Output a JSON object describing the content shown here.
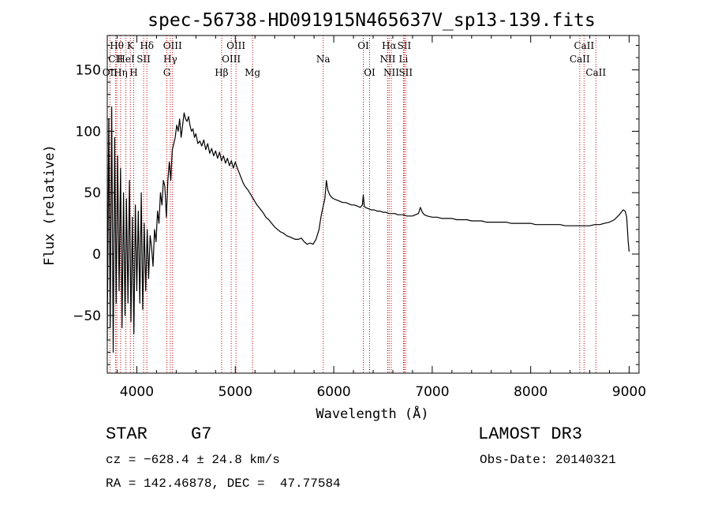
{
  "chart_data": {
    "type": "line",
    "title": "spec-56738-HD091915N465637V_sp13-139.fits",
    "xlabel": "Wavelength (Å)",
    "ylabel": "Flux (relative)",
    "xlim": [
      3700,
      9100
    ],
    "ylim": [
      -97,
      178
    ],
    "xticks": [
      4000,
      5000,
      6000,
      7000,
      8000,
      9000
    ],
    "yticks": [
      -50,
      0,
      50,
      100,
      150
    ],
    "series": [
      {
        "name": "flux",
        "x": [
          3700,
          3715,
          3730,
          3745,
          3760,
          3775,
          3790,
          3805,
          3820,
          3835,
          3850,
          3865,
          3880,
          3895,
          3910,
          3925,
          3940,
          3955,
          3970,
          3985,
          4000,
          4015,
          4030,
          4045,
          4060,
          4075,
          4090,
          4105,
          4120,
          4135,
          4150,
          4165,
          4180,
          4195,
          4210,
          4225,
          4240,
          4255,
          4270,
          4285,
          4300,
          4315,
          4330,
          4345,
          4360,
          4375,
          4390,
          4405,
          4420,
          4435,
          4450,
          4465,
          4480,
          4495,
          4510,
          4525,
          4540,
          4555,
          4570,
          4585,
          4600,
          4620,
          4640,
          4660,
          4680,
          4700,
          4720,
          4740,
          4760,
          4780,
          4800,
          4820,
          4840,
          4860,
          4880,
          4900,
          4920,
          4940,
          4960,
          4980,
          5000,
          5020,
          5040,
          5060,
          5080,
          5100,
          5130,
          5160,
          5190,
          5220,
          5250,
          5280,
          5310,
          5340,
          5370,
          5400,
          5430,
          5460,
          5490,
          5520,
          5550,
          5580,
          5610,
          5640,
          5670,
          5700,
          5730,
          5760,
          5790,
          5820,
          5850,
          5870,
          5890,
          5910,
          5925,
          5940,
          5960,
          5980,
          6000,
          6030,
          6060,
          6090,
          6120,
          6150,
          6180,
          6210,
          6240,
          6270,
          6290,
          6300,
          6310,
          6320,
          6350,
          6380,
          6410,
          6440,
          6470,
          6500,
          6530,
          6560,
          6590,
          6620,
          6650,
          6680,
          6710,
          6740,
          6770,
          6800,
          6830,
          6860,
          6880,
          6900,
          6920,
          6950,
          7000,
          7050,
          7100,
          7150,
          7200,
          7250,
          7300,
          7350,
          7400,
          7450,
          7500,
          7550,
          7600,
          7650,
          7700,
          7750,
          7800,
          7850,
          7900,
          7950,
          8000,
          8050,
          8100,
          8150,
          8200,
          8250,
          8300,
          8350,
          8400,
          8450,
          8500,
          8550,
          8600,
          8650,
          8700,
          8750,
          8800,
          8850,
          8900,
          8940,
          8960,
          8975,
          8990,
          9000
        ],
        "values": [
          -70,
          110,
          -60,
          120,
          -80,
          95,
          -40,
          80,
          -30,
          70,
          -60,
          50,
          -50,
          45,
          -40,
          60,
          -55,
          30,
          -65,
          40,
          -30,
          35,
          -40,
          50,
          -45,
          25,
          -30,
          20,
          -20,
          15,
          5,
          -10,
          20,
          10,
          35,
          25,
          50,
          40,
          60,
          55,
          30,
          60,
          75,
          60,
          85,
          90,
          95,
          105,
          100,
          110,
          95,
          105,
          115,
          110,
          108,
          112,
          105,
          100,
          102,
          95,
          98,
          90,
          92,
          88,
          93,
          85,
          90,
          82,
          86,
          80,
          84,
          78,
          83,
          76,
          80,
          74,
          78,
          72,
          76,
          70,
          75,
          70,
          66,
          62,
          58,
          55,
          52,
          48,
          44,
          40,
          37,
          34,
          30,
          28,
          25,
          22,
          20,
          18,
          17,
          15,
          14,
          13,
          12,
          12,
          13,
          10,
          8,
          9,
          8,
          12,
          20,
          30,
          38,
          45,
          60,
          52,
          48,
          46,
          45,
          44,
          43,
          42,
          42,
          41,
          40,
          40,
          39,
          38,
          40,
          48,
          39,
          38,
          37,
          36,
          36,
          35,
          35,
          34,
          34,
          33,
          33,
          33,
          32,
          32,
          32,
          31,
          31,
          31,
          32,
          33,
          38,
          34,
          32,
          31,
          30,
          30,
          29,
          29,
          29,
          28,
          28,
          28,
          27,
          27,
          27,
          26,
          26,
          26,
          26,
          26,
          25,
          25,
          25,
          25,
          25,
          24,
          24,
          24,
          24,
          24,
          24,
          23,
          23,
          23,
          23,
          23,
          23,
          24,
          24,
          25,
          26,
          28,
          32,
          36,
          35,
          30,
          10,
          2
        ]
      }
    ],
    "spectral_lines": [
      {
        "label": "Hθ",
        "x": 3797,
        "row": 0
      },
      {
        "label": "CII",
        "x": 3785,
        "row": 1
      },
      {
        "label": "OII",
        "x": 3727,
        "row": 2
      },
      {
        "label": "Hη",
        "x": 3835,
        "row": 2
      },
      {
        "label": "K",
        "x": 3934,
        "row": 0
      },
      {
        "label": "HeI",
        "x": 3889,
        "row": 1
      },
      {
        "label": "SII",
        "x": 4069,
        "row": 1
      },
      {
        "label": "Hδ",
        "x": 4102,
        "row": 0
      },
      {
        "label": "H",
        "x": 3968,
        "row": 2
      },
      {
        "label": "OIII",
        "x": 4363,
        "row": 0
      },
      {
        "label": "Hγ",
        "x": 4340,
        "row": 1
      },
      {
        "label": "G",
        "x": 4305,
        "row": 2
      },
      {
        "label": "OIII",
        "x": 5007,
        "row": 0
      },
      {
        "label": "OIII",
        "x": 4959,
        "row": 1
      },
      {
        "label": "Hβ",
        "x": 4861,
        "row": 2
      },
      {
        "label": "Mg",
        "x": 5175,
        "row": 2
      },
      {
        "label": "Na",
        "x": 5893,
        "row": 1
      },
      {
        "label": "OI",
        "x": 6300,
        "row": 0
      },
      {
        "label": "OI",
        "x": 6364,
        "row": 2
      },
      {
        "label": "Hα",
        "x": 6563,
        "row": 0
      },
      {
        "label": "NII",
        "x": 6548,
        "row": 1
      },
      {
        "label": "NII",
        "x": 6584,
        "row": 2
      },
      {
        "label": "SII",
        "x": 6716,
        "row": 0
      },
      {
        "label": "Li",
        "x": 6708,
        "row": 1
      },
      {
        "label": "SII",
        "x": 6731,
        "row": 2
      },
      {
        "label": "CaII",
        "x": 8542,
        "row": 0
      },
      {
        "label": "CaII",
        "x": 8498,
        "row": 1
      },
      {
        "label": "CaII",
        "x": 8662,
        "row": 2
      }
    ]
  },
  "footer": {
    "class_label": "STAR",
    "subclass": "G7",
    "survey": "LAMOST DR3",
    "cz": "cz = −628.4 ± 24.8 km/s",
    "obs_date": "Obs-Date: 20140321",
    "radec": "RA = 142.46878, DEC =  47.77584"
  },
  "colors": {
    "spectrum": "#000000",
    "line_markers": "#cc0000",
    "axes": "#000000"
  }
}
